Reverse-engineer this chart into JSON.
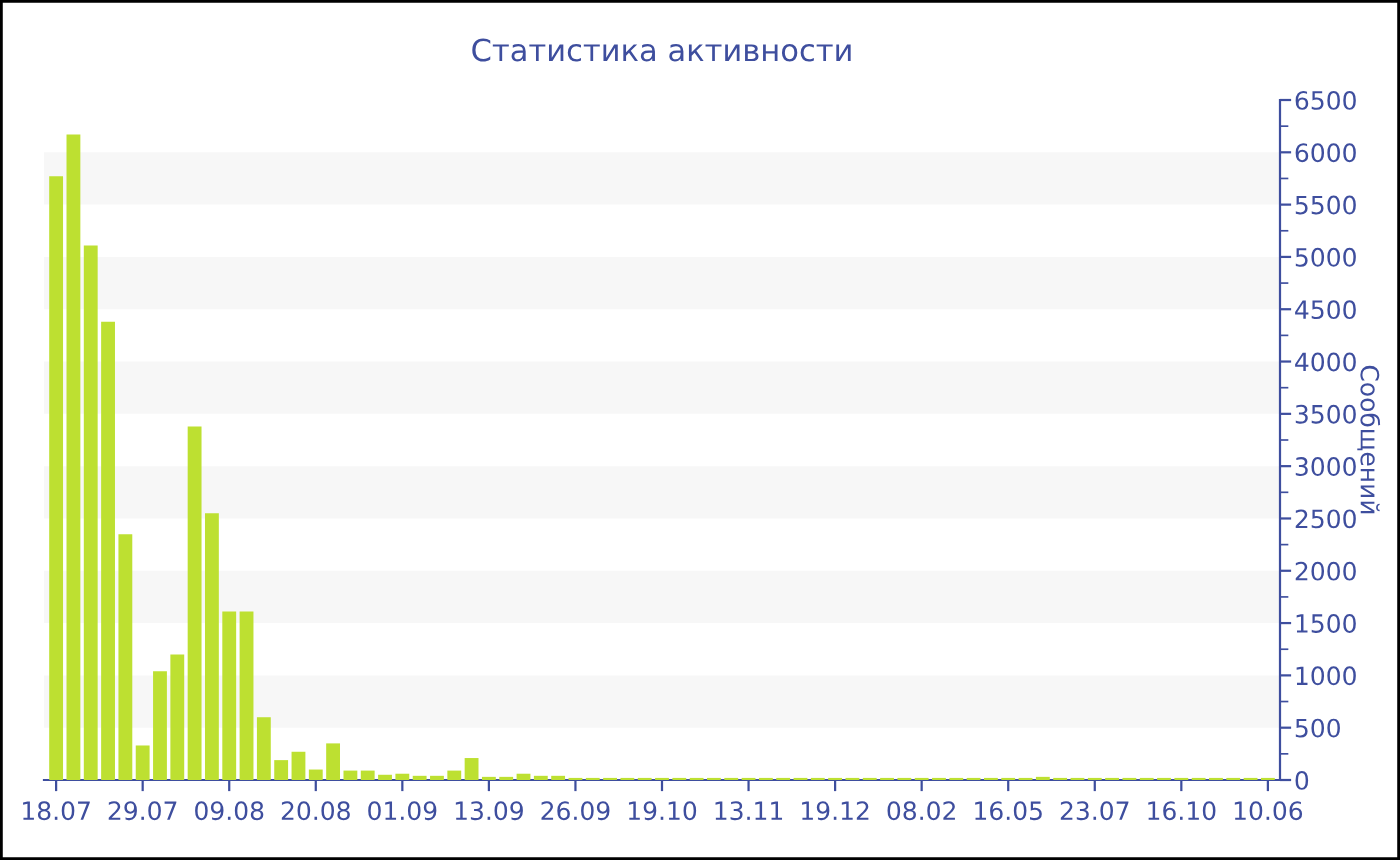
{
  "chart_data": {
    "type": "bar",
    "title": "Статистика активности",
    "ylabel": "Сообщений",
    "categories": [
      "18.07",
      null,
      null,
      null,
      null,
      "29.07",
      null,
      null,
      null,
      null,
      "09.08",
      null,
      null,
      null,
      null,
      "20.08",
      null,
      null,
      null,
      null,
      "01.09",
      null,
      null,
      null,
      null,
      "13.09",
      null,
      null,
      null,
      null,
      "26.09",
      null,
      null,
      null,
      null,
      "19.10",
      null,
      null,
      null,
      null,
      "13.11",
      null,
      null,
      null,
      null,
      "19.12",
      null,
      null,
      null,
      null,
      "08.02",
      null,
      null,
      null,
      null,
      "16.05",
      null,
      null,
      null,
      null,
      "23.07",
      null,
      null,
      null,
      null,
      "16.10",
      null,
      null,
      null,
      null,
      "10.06"
    ],
    "values": [
      5770,
      6170,
      5110,
      4380,
      2350,
      330,
      1040,
      1200,
      3380,
      2550,
      1610,
      1610,
      600,
      190,
      270,
      100,
      350,
      90,
      90,
      50,
      60,
      40,
      40,
      90,
      210,
      30,
      30,
      60,
      40,
      40,
      20,
      20,
      20,
      20,
      20,
      20,
      20,
      20,
      20,
      20,
      20,
      20,
      20,
      20,
      20,
      20,
      20,
      20,
      20,
      20,
      20,
      20,
      20,
      20,
      20,
      20,
      20,
      30,
      20,
      20,
      20,
      20,
      20,
      20,
      20,
      20,
      20,
      20,
      20,
      20,
      20
    ],
    "color": "#bde031",
    "ylim": [
      0,
      6500
    ],
    "yticks": [
      0,
      500,
      1000,
      1500,
      2000,
      2500,
      3000,
      3500,
      4000,
      4500,
      5000,
      5500,
      6000,
      6500
    ],
    "bands": [
      {
        "axis": "y",
        "from": 500,
        "to": 1000,
        "color": "#f7f7f7"
      },
      {
        "axis": "y",
        "from": 1500,
        "to": 2000,
        "color": "#f7f7f7"
      },
      {
        "axis": "y",
        "from": 2500,
        "to": 3000,
        "color": "#f7f7f7"
      },
      {
        "axis": "y",
        "from": 3500,
        "to": 4000,
        "color": "#f7f7f7"
      },
      {
        "axis": "y",
        "from": 4500,
        "to": 5000,
        "color": "#f7f7f7"
      },
      {
        "axis": "y",
        "from": 5500,
        "to": 6000,
        "color": "#f7f7f7"
      }
    ],
    "grid": false,
    "legend": false
  }
}
